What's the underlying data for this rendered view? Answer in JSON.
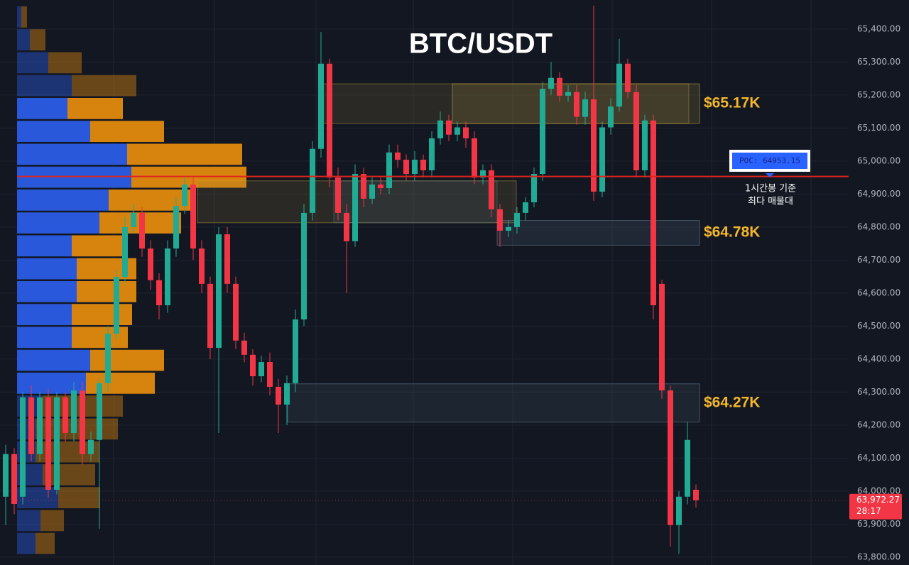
{
  "chart_data": {
    "type": "candlestick",
    "title": "BTC/USDT",
    "colors": {
      "up": "#22ab94",
      "down": "#f23645",
      "poc": "#e0231e"
    },
    "ylim": [
      63776,
      65488
    ],
    "yticks": [
      {
        "value": 63800,
        "label": "63,800.00"
      },
      {
        "value": 63900,
        "label": "63,900.00"
      },
      {
        "value": 64000,
        "label": "64,000.00"
      },
      {
        "value": 64100,
        "label": "64,100.00"
      },
      {
        "value": 64200,
        "label": "64,200.00"
      },
      {
        "value": 64300,
        "label": "64,300.00"
      },
      {
        "value": 64400,
        "label": "64,400.00"
      },
      {
        "value": 64500,
        "label": "64,500.00"
      },
      {
        "value": 64600,
        "label": "64,600.00"
      },
      {
        "value": 64700,
        "label": "64,700.00"
      },
      {
        "value": 64800,
        "label": "64,800.00"
      },
      {
        "value": 64900,
        "label": "64,900.00"
      },
      {
        "value": 65000,
        "label": "65,000.00"
      },
      {
        "value": 65100,
        "label": "65,100.00"
      },
      {
        "value": 65200,
        "label": "65,200.00"
      },
      {
        "value": 65300,
        "label": "65,300.00"
      },
      {
        "value": 65400,
        "label": "65,400.00"
      }
    ],
    "grid": true,
    "open": [
      63983,
      64112,
      63983,
      64284,
      64112,
      64284,
      64004,
      64284,
      64176,
      64305,
      64112,
      64155,
      64327,
      64477,
      64649,
      64800,
      64843,
      64735,
      64639,
      64563,
      64735,
      64864,
      64929,
      64735,
      64628,
      64434,
      64778,
      64628,
      64456,
      64413,
      64348,
      64391,
      64316,
      64262,
      64327,
      64520,
      64843,
      65037,
      65295,
      64950,
      64843,
      64757,
      64961,
      64886,
      64929,
      64918,
      65026,
      65004,
      64961,
      65004,
      64972,
      65069,
      65123,
      65080,
      65102,
      65069,
      64950,
      64972,
      64854,
      64789,
      64800,
      64843,
      64875,
      64961,
      65219,
      65252,
      65198,
      65209,
      65134,
      65187,
      64907,
      65102,
      65165,
      65295,
      65209,
      64972,
      65123,
      64628,
      64305,
      63897,
      63983,
      64004
    ],
    "high": [
      64140,
      64130,
      64300,
      64320,
      64300,
      64310,
      64300,
      64300,
      64330,
      64330,
      64180,
      64340,
      64500,
      64670,
      64830,
      64870,
      64860,
      64760,
      64660,
      64760,
      64890,
      64950,
      64950,
      64760,
      64650,
      64800,
      64800,
      64650,
      64480,
      64430,
      64410,
      64420,
      64340,
      64350,
      64550,
      64870,
      65060,
      65391,
      65310,
      64980,
      64870,
      64990,
      64980,
      64950,
      64950,
      65050,
      65050,
      65020,
      65030,
      65020,
      65090,
      65150,
      65140,
      65120,
      65120,
      65090,
      64990,
      64990,
      64870,
      64820,
      64860,
      64890,
      64980,
      65240,
      65300,
      65270,
      65230,
      65230,
      65210,
      65471,
      65120,
      65190,
      65370,
      65310,
      65230,
      65140,
      65140,
      64640,
      64320,
      64000,
      64209,
      64020
    ],
    "low": [
      63897,
      63930,
      63960,
      64090,
      64090,
      63980,
      63990,
      64150,
      64150,
      64080,
      64090,
      63886,
      64300,
      64460,
      64630,
      64780,
      64710,
      64610,
      64520,
      64540,
      64710,
      64840,
      64700,
      64600,
      64400,
      64176,
      64600,
      64430,
      64390,
      64320,
      64330,
      64290,
      64176,
      64200,
      64300,
      64500,
      64820,
      65010,
      64920,
      64820,
      64600,
      64740,
      64860,
      64870,
      64900,
      64900,
      64980,
      64940,
      64940,
      64950,
      64950,
      65050,
      65060,
      65060,
      65040,
      64930,
      64930,
      64830,
      64740,
      64770,
      64780,
      64820,
      64860,
      64940,
      65200,
      65180,
      65180,
      65110,
      65110,
      64880,
      64890,
      65080,
      65150,
      65190,
      64950,
      64950,
      64520,
      64280,
      63832,
      63810,
      63960,
      63950
    ],
    "close": [
      64112,
      63961,
      64284,
      64112,
      64284,
      64004,
      64284,
      64176,
      64305,
      64112,
      64155,
      64327,
      64477,
      64649,
      64800,
      64843,
      64735,
      64639,
      64563,
      64735,
      64864,
      64929,
      64735,
      64628,
      64434,
      64778,
      64628,
      64456,
      64413,
      64348,
      64391,
      64316,
      64262,
      64327,
      64520,
      64843,
      65037,
      65295,
      64950,
      64843,
      64757,
      64961,
      64886,
      64929,
      64918,
      65026,
      65004,
      64961,
      65004,
      64972,
      65069,
      65123,
      65080,
      65102,
      65069,
      64950,
      64972,
      64854,
      64789,
      64800,
      64843,
      64875,
      64961,
      65219,
      65252,
      65198,
      65209,
      65134,
      65187,
      64907,
      65102,
      65165,
      65295,
      65209,
      64972,
      65123,
      64563,
      64305,
      63897,
      63983,
      64155,
      63972.27
    ],
    "volume_profile": {
      "buy": [
        6,
        18,
        44,
        77,
        71,
        103,
        155,
        161,
        129,
        116,
        77,
        84,
        84,
        77,
        77,
        103,
        97,
        36,
        26,
        26,
        36,
        58,
        33,
        26
      ],
      "sell": [
        8,
        22,
        47,
        91,
        78,
        104,
        162,
        162,
        117,
        115,
        79,
        84,
        84,
        85,
        79,
        104,
        97,
        113,
        116,
        90,
        74,
        59,
        33,
        27
      ],
      "buy_color": "#2b5ce6",
      "sell_color": "#e08a0e",
      "value_area": [
        4,
        16
      ]
    },
    "poc": {
      "value": 64953.15,
      "label": "POC: 64953.15"
    },
    "poc_note": [
      "1시간봉 기준",
      "최다 매물대"
    ],
    "zones": [
      {
        "top": 65234,
        "bottom": 65114,
        "label": "$65.17K"
      },
      {
        "top": 64820,
        "bottom": 64745,
        "label": "$64.78K"
      },
      {
        "top": 64325,
        "bottom": 64209,
        "label": "$64.27K"
      }
    ],
    "boxes": [
      {
        "top": 65234,
        "bottom": 65114
      },
      {
        "top": 64940,
        "bottom": 64813
      },
      {
        "top": 64940,
        "bottom": 64813
      }
    ],
    "last_price": {
      "value": 63972.27,
      "label": "63,972.27"
    },
    "countdown": "28:17"
  }
}
